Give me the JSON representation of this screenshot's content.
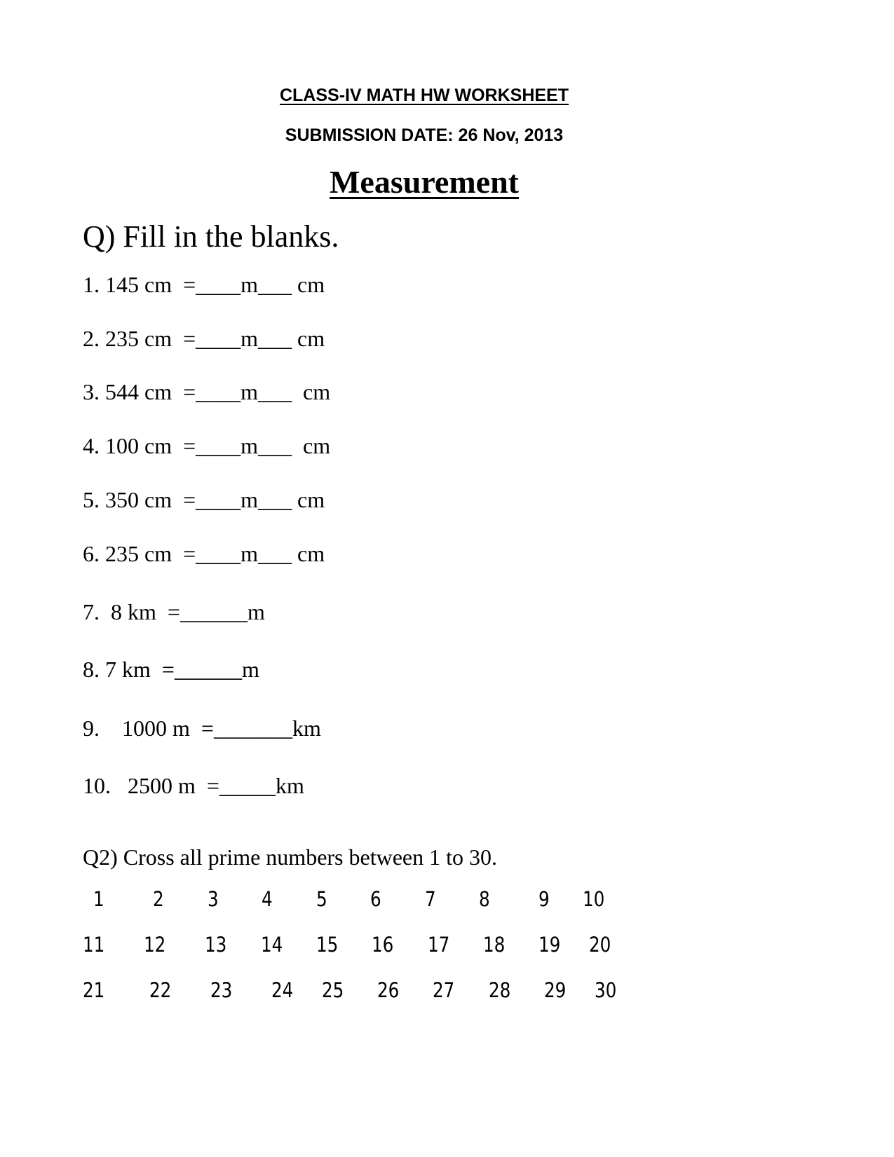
{
  "header": {
    "title": "CLASS-IV MATH HW WORKSHEET",
    "submission": "SUBMISSION DATE: 26 Nov, 2013",
    "topic": "Measurement"
  },
  "q1": {
    "prompt": "Q) Fill in the blanks.",
    "items": [
      "1. 145 cm  =____m___ cm",
      "2. 235 cm  =____m___ cm",
      "3. 544 cm  =____m___  cm",
      "4. 100 cm  =____m___  cm",
      "5. 350 cm  =____m___ cm",
      "6. 235 cm  =____m___ cm",
      "7.  8 km  =______m",
      "8. 7 km  =______m",
      "9.    1000 m  =_______km",
      "10.   2500 m  =_____km"
    ]
  },
  "q2": {
    "prompt": "Q2) Cross all prime numbers between 1 to 30.",
    "rows": [
      [
        "1",
        "2",
        "3",
        "4",
        "5",
        "6",
        "7",
        "8",
        "9",
        "10"
      ],
      [
        "11",
        "12",
        "13",
        "14",
        "15",
        "16",
        "17",
        "18",
        "19",
        "20"
      ],
      [
        "21",
        "22",
        "23",
        "24",
        "25",
        "26",
        "27",
        "28",
        "29",
        "30"
      ]
    ]
  }
}
